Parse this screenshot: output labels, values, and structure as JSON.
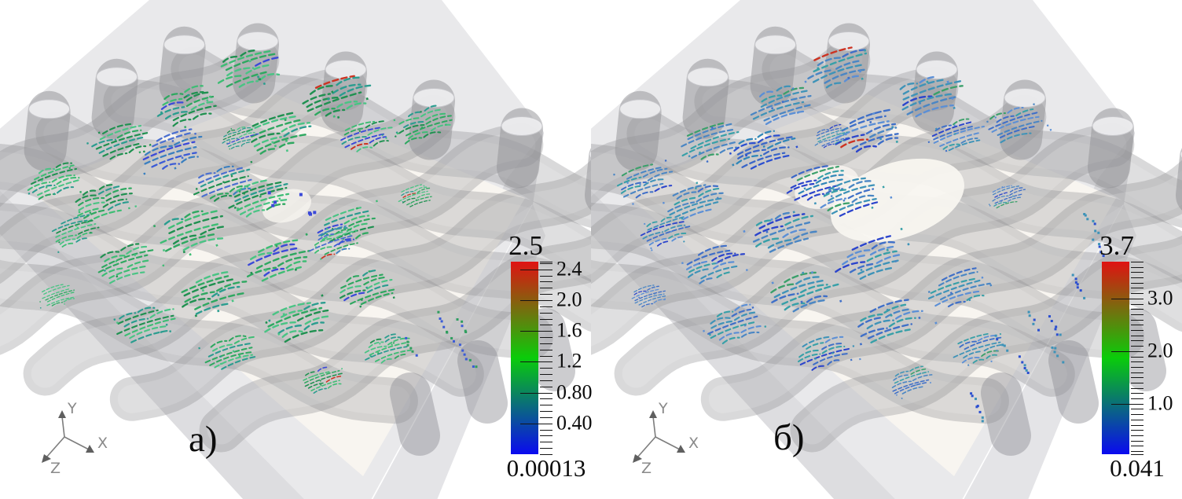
{
  "figure": {
    "panel_count": 2
  },
  "scene": {
    "background": "#ffffff",
    "box_top_color": "#e9e9eb",
    "box_side_color": "#d7d7da",
    "box_lower_band_color": "#e1e1e4",
    "floor_color": "#f8f5f0",
    "yarn_color": "#8f8f94",
    "yarn_highlight": "#ffffff",
    "yarn_end_cap_fill": "#ededef",
    "yarn_end_cap_rim": "#c6c6ca"
  },
  "colormap": {
    "stops": [
      "#0a0af0",
      "#0acc0a",
      "#e01212"
    ]
  },
  "panels": [
    {
      "id": "a",
      "label": "а)",
      "axis_triad": {
        "x": "X",
        "y": "Y",
        "z": "Z"
      },
      "colorbar": {
        "max_label": "2.5",
        "min_label": "0.00013",
        "range": [
          0.00013,
          2.5
        ],
        "major_ticks": [
          {
            "value": 2.4,
            "label": "2.4"
          },
          {
            "value": 2.0,
            "label": "2.0"
          },
          {
            "value": 1.6,
            "label": "1.6"
          },
          {
            "value": 1.2,
            "label": "1.2"
          },
          {
            "value": 0.8,
            "label": "0.80"
          },
          {
            "value": 0.4,
            "label": "0.40"
          }
        ],
        "minor_tick_step": 0.08
      },
      "streamlines": {
        "palette": [
          "#2ea860",
          "#3dbd74",
          "#1f9150",
          "#49c484",
          "#2a9d8f"
        ],
        "blue_palette": [
          "#3b5bd6",
          "#4a6fd0",
          "#3a7fc0"
        ],
        "dot_colors": [
          "#2f9e5f",
          "#3b5bd6"
        ],
        "red_accent": "#cc3322",
        "blue_accent": "#3b49d8",
        "green_accent": "#2ea860",
        "red_chance": 0.015,
        "blue_chance": 0.05,
        "green_chance": 0
      }
    },
    {
      "id": "b",
      "label": "б)",
      "axis_triad": {
        "x": "X",
        "y": "Y",
        "z": "Z"
      },
      "colorbar": {
        "max_label": "3.7",
        "min_label": "0.041",
        "range": [
          0.041,
          3.7
        ],
        "major_ticks": [
          {
            "value": 3.0,
            "label": "3.0"
          },
          {
            "value": 2.0,
            "label": "2.0"
          },
          {
            "value": 1.0,
            "label": "1.0"
          }
        ],
        "minor_tick_step": 0.1
      },
      "streamlines": {
        "palette": [
          "#3e93b8",
          "#4a86c4",
          "#3f6fc8",
          "#37a0a8",
          "#5b8fd6"
        ],
        "blue_palette": [
          "#2b4fd0",
          "#3a66c8",
          "#2f86b8"
        ],
        "dot_colors": [
          "#2b4fd0",
          "#3e93b8"
        ],
        "red_accent": "#cc3322",
        "blue_accent": "#2b44cc",
        "green_accent": "#3aa06a",
        "red_chance": 0.01,
        "blue_chance": 0.07,
        "green_chance": 0.05
      }
    }
  ],
  "chart_data": [
    {
      "type": "heatmap",
      "role": "colorbar-scale",
      "panel": "а)",
      "title": "",
      "range_min": 0.00013,
      "range_max": 2.5,
      "min_label": "0.00013",
      "max_label": "2.5",
      "major_ticks": [
        2.4,
        2.0,
        1.6,
        1.2,
        0.8,
        0.4
      ],
      "major_tick_labels": [
        "2.4",
        "2.0",
        "1.6",
        "1.2",
        "0.80",
        "0.40"
      ],
      "minor_tick_step": 0.08,
      "colormap": [
        "#0000ff",
        "#00ff00",
        "#ff0000"
      ],
      "legend_position": "right"
    },
    {
      "type": "heatmap",
      "role": "colorbar-scale",
      "panel": "б)",
      "title": "",
      "range_min": 0.041,
      "range_max": 3.7,
      "min_label": "0.041",
      "max_label": "3.7",
      "major_ticks": [
        3.0,
        2.0,
        1.0
      ],
      "major_tick_labels": [
        "3.0",
        "2.0",
        "1.0"
      ],
      "minor_tick_step": 0.1,
      "colormap": [
        "#0000ff",
        "#00ff00",
        "#ff0000"
      ],
      "legend_position": "right"
    }
  ]
}
